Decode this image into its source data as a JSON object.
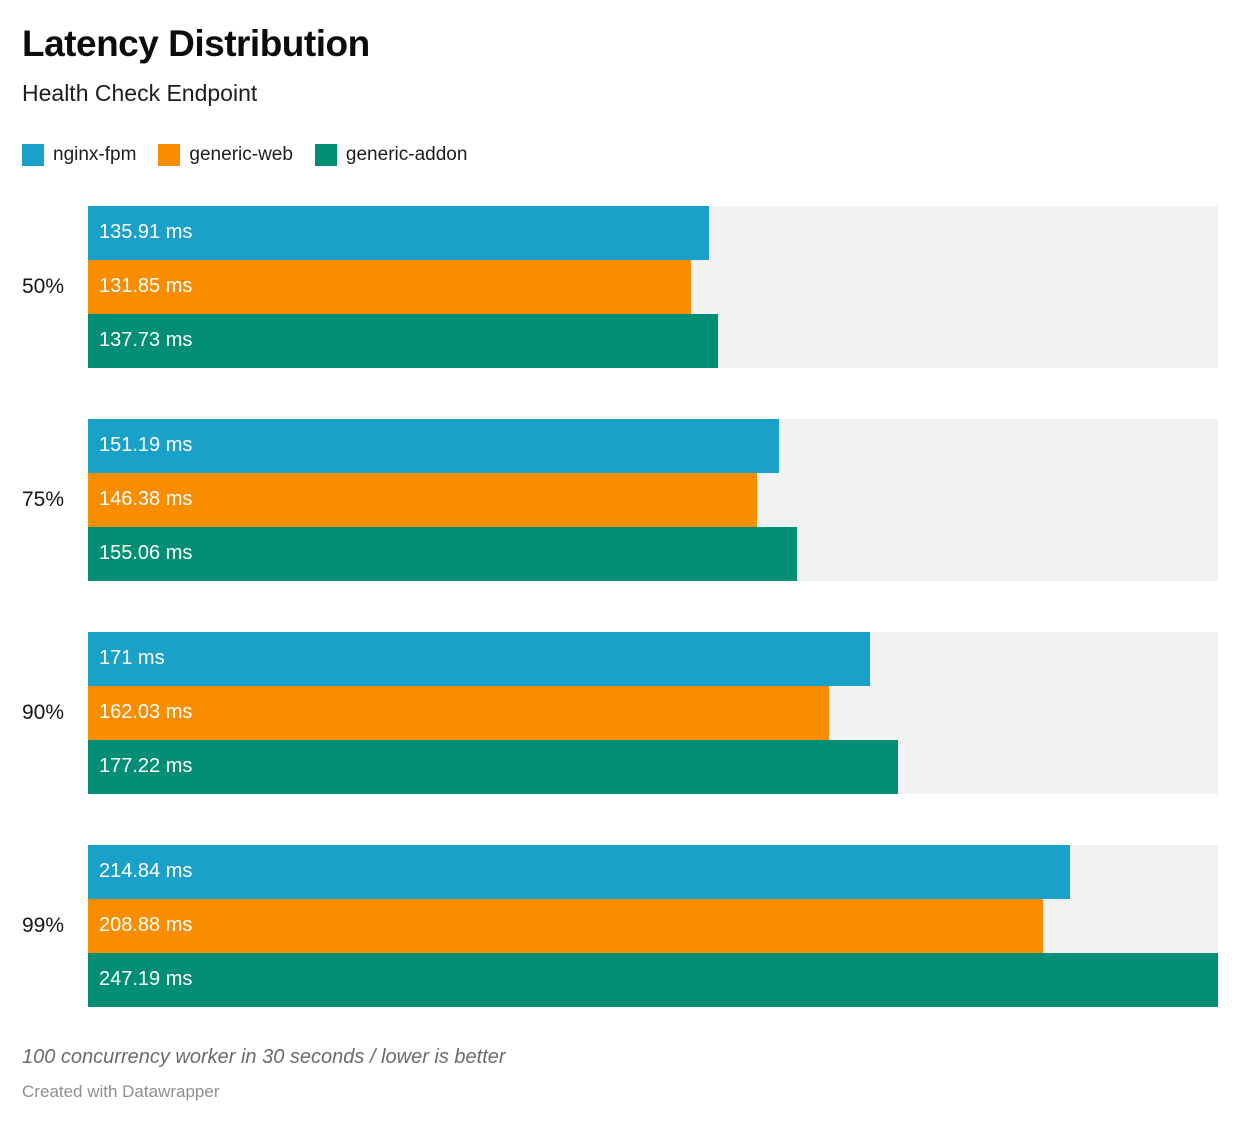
{
  "header": {
    "title": "Latency Distribution",
    "subtitle": "Health Check Endpoint"
  },
  "chart_data": {
    "type": "bar",
    "orientation": "horizontal",
    "title": "Latency Distribution",
    "subtitle": "Health Check Endpoint",
    "categories": [
      "50%",
      "75%",
      "90%",
      "99%"
    ],
    "series": [
      {
        "name": "nginx-fpm",
        "color": "#1AA1CA",
        "values": [
          135.91,
          151.19,
          171,
          214.84
        ],
        "labels": [
          "135.91 ms",
          "151.19 ms",
          "171 ms",
          "214.84 ms"
        ]
      },
      {
        "name": "generic-web",
        "color": "#F88D00",
        "values": [
          131.85,
          146.38,
          162.03,
          208.88
        ],
        "labels": [
          "131.85 ms",
          "146.38 ms",
          "162.03 ms",
          "208.88 ms"
        ]
      },
      {
        "name": "generic-addon",
        "color": "#008F74",
        "values": [
          137.73,
          155.06,
          177.22,
          247.19
        ],
        "labels": [
          "137.73 ms",
          "155.06 ms",
          "177.22 ms",
          "247.19 ms"
        ]
      }
    ],
    "unit": "ms",
    "xlim": [
      0,
      247.19
    ],
    "grid": false,
    "legend_position": "top",
    "track_color": "#F2F2F2",
    "value_label_color": "#FFFFFF"
  },
  "footer": {
    "note": "100 concurrency worker in 30 seconds / lower is better",
    "credit": "Created with Datawrapper"
  }
}
